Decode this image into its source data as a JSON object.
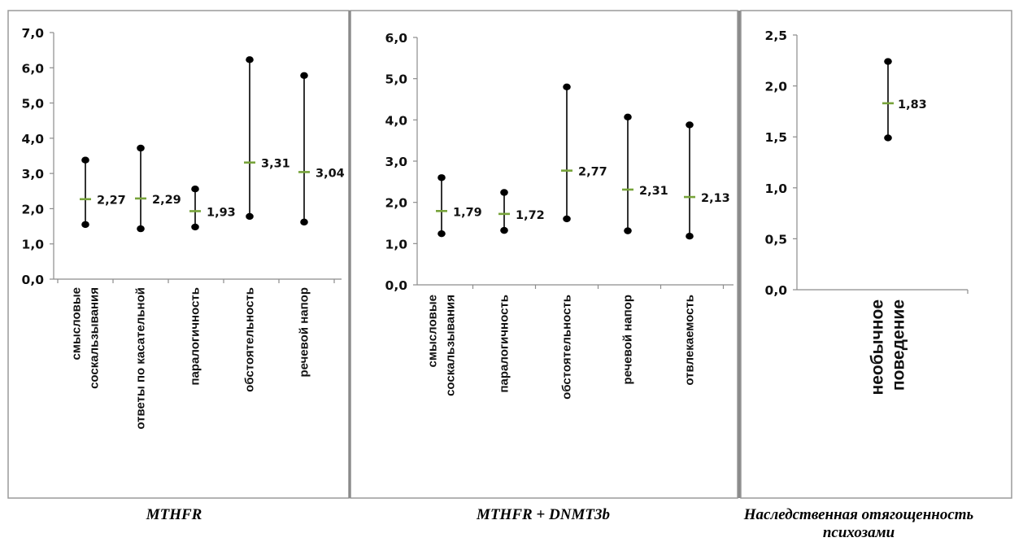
{
  "chart_data": [
    {
      "type": "range",
      "caption": "MTHFR",
      "ylim": [
        0,
        7
      ],
      "yticks": [
        "0,0",
        "1,0",
        "2,0",
        "3,0",
        "4,0",
        "5,0",
        "6,0",
        "7,0"
      ],
      "categories": [
        "смысловые соскальзывания",
        "ответы по касательной",
        "паралогичность",
        "обстоятельность",
        "речевой напор"
      ],
      "low": [
        1.55,
        1.43,
        1.48,
        1.78,
        1.62
      ],
      "high": [
        3.38,
        3.72,
        2.56,
        6.23,
        5.78
      ],
      "mean": [
        2.27,
        2.29,
        1.93,
        3.31,
        3.04
      ],
      "mean_labels": [
        "2,27",
        "2,29",
        "1,93",
        "3,31",
        "3,04"
      ],
      "mean_color": "#77a33a"
    },
    {
      "type": "range",
      "caption": "MTHFR + DNMT3b",
      "ylim": [
        0,
        6
      ],
      "yticks": [
        "0,0",
        "1,0",
        "2,0",
        "3,0",
        "4,0",
        "5,0",
        "6,0"
      ],
      "categories": [
        "смысловые соскальзывания",
        "паралогичность",
        "обстоятельность",
        "речевой напор",
        "отвлекаемость"
      ],
      "low": [
        1.24,
        1.32,
        1.6,
        1.31,
        1.18
      ],
      "high": [
        2.6,
        2.24,
        4.8,
        4.07,
        3.88
      ],
      "mean": [
        1.79,
        1.72,
        2.77,
        2.31,
        2.13
      ],
      "mean_labels": [
        "1,79",
        "1,72",
        "2,77",
        "2,31",
        "2,13"
      ],
      "mean_color": "#77a33a"
    },
    {
      "type": "range",
      "caption": "Наследственная отягощенность психозами",
      "ylim": [
        0,
        2.5
      ],
      "yticks": [
        "0,0",
        "0,5",
        "1,0",
        "1,5",
        "2,0",
        "2,5"
      ],
      "categories": [
        "необычное поведение"
      ],
      "low": [
        1.49
      ],
      "high": [
        2.24
      ],
      "mean": [
        1.83
      ],
      "mean_labels": [
        "1,83"
      ],
      "mean_color": "#77a33a"
    }
  ]
}
